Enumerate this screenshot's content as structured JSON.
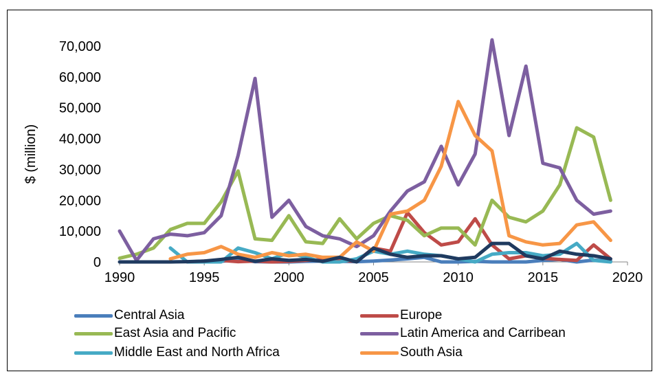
{
  "chart_data": {
    "type": "line",
    "title": "",
    "xlabel": "",
    "ylabel": "$ (million)",
    "xlim": [
      1990,
      2020
    ],
    "ylim": [
      0,
      70000
    ],
    "x_ticks": [
      "1990",
      "1995",
      "2000",
      "2005",
      "2010",
      "2015",
      "2020"
    ],
    "y_ticks": [
      "0",
      "10,000",
      "20,000",
      "30,000",
      "40,000",
      "50,000",
      "60,000",
      "70,000"
    ],
    "grid": false,
    "legend_position": "bottom",
    "x": [
      1990,
      1991,
      1992,
      1993,
      1994,
      1995,
      1996,
      1997,
      1998,
      1999,
      2000,
      2001,
      2002,
      2003,
      2004,
      2005,
      2006,
      2007,
      2008,
      2009,
      2010,
      2011,
      2012,
      2013,
      2014,
      2015,
      2016,
      2017,
      2018,
      2019
    ],
    "series": [
      {
        "name": "Central Asia",
        "color": "#4a7ebb",
        "values": [
          null,
          null,
          null,
          null,
          null,
          0,
          200,
          800,
          100,
          0,
          0,
          200,
          300,
          200,
          100,
          300,
          600,
          1000,
          1500,
          0,
          0,
          200,
          0,
          0,
          0,
          500,
          800,
          0,
          600,
          300
        ]
      },
      {
        "name": "Europe",
        "color": "#be4b48",
        "values": [
          null,
          null,
          null,
          null,
          0,
          300,
          500,
          100,
          300,
          0,
          200,
          500,
          800,
          500,
          200,
          4500,
          3500,
          16000,
          9500,
          5500,
          6500,
          14000,
          5500,
          1000,
          2000,
          1200,
          800,
          500,
          5500,
          1000
        ]
      },
      {
        "name": "East Asia and Pacific",
        "color": "#98b954",
        "values": [
          1200,
          2500,
          4500,
          10500,
          12500,
          12500,
          19500,
          29500,
          7500,
          7000,
          15000,
          6500,
          6000,
          14000,
          7500,
          12500,
          15000,
          13500,
          8500,
          11000,
          11000,
          5500,
          20000,
          14500,
          13000,
          16500,
          25000,
          43500,
          40500,
          20000
        ]
      },
      {
        "name": "Latin America and Carribean",
        "color": "#7d5fa0",
        "values": [
          10000,
          500,
          7500,
          9000,
          8500,
          9500,
          15000,
          34500,
          59500,
          14500,
          20000,
          11500,
          8500,
          7500,
          5000,
          8500,
          16500,
          23000,
          26000,
          37500,
          25000,
          35000,
          72000,
          41000,
          63500,
          32000,
          30500,
          20000,
          15500,
          16500
        ]
      },
      {
        "name": "Middle East and North Africa",
        "color": "#46aac5",
        "values": [
          null,
          null,
          null,
          4500,
          0,
          0,
          0,
          4500,
          3000,
          1000,
          3000,
          1500,
          0,
          0,
          1000,
          3500,
          2500,
          3500,
          2500,
          2000,
          1000,
          0,
          2500,
          3000,
          3000,
          2000,
          2500,
          6000,
          500,
          0
        ]
      },
      {
        "name": "South Asia",
        "color": "#f79646",
        "values": [
          null,
          null,
          null,
          1000,
          2500,
          3000,
          5000,
          2500,
          1500,
          3000,
          2000,
          2500,
          1500,
          1500,
          6500,
          3500,
          15500,
          16500,
          20000,
          31000,
          52000,
          41000,
          36000,
          8500,
          6500,
          5500,
          6000,
          12000,
          13000,
          7000
        ]
      },
      {
        "name": "",
        "color": "#1f3a5f",
        "values": [
          0,
          0,
          0,
          0,
          100,
          300,
          800,
          1500,
          200,
          1000,
          500,
          800,
          200,
          1500,
          0,
          4500,
          2500,
          1500,
          2000,
          2000,
          1000,
          1500,
          6000,
          6000,
          2000,
          1000,
          3500,
          2500,
          2000,
          1000
        ]
      }
    ]
  }
}
